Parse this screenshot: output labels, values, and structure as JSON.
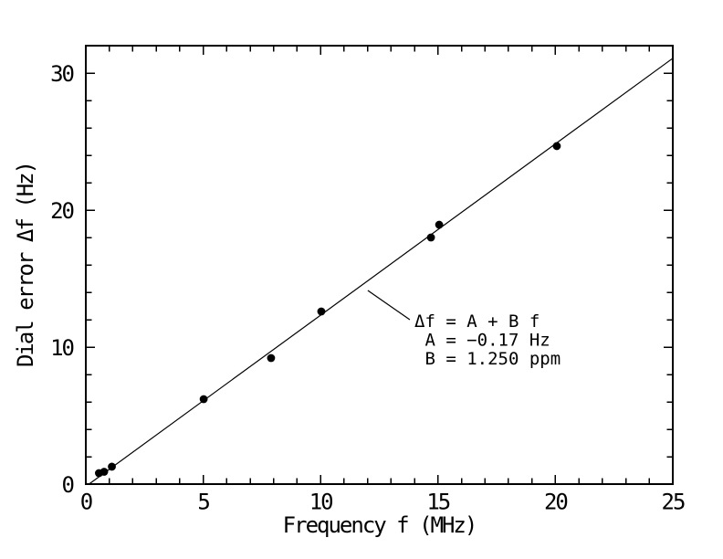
{
  "figure": {
    "background": "#ffffff",
    "ink": "#000000"
  },
  "chart_data": {
    "type": "scatter",
    "title": "",
    "xlabel": "Frequency f (MHz)",
    "ylabel": "Dial error Δf (Hz)",
    "xlim": [
      0,
      25
    ],
    "ylim": [
      0,
      32
    ],
    "x_major_ticks": [
      0,
      5,
      10,
      15,
      20,
      25
    ],
    "x_minor_step": 1,
    "y_major_ticks": [
      0,
      10,
      20,
      30
    ],
    "y_minor_step": 2,
    "grid": false,
    "legend": "none",
    "marker": {
      "shape": "filled-circle",
      "radius_px": 4.4,
      "color": "#000000"
    },
    "points": [
      {
        "f": 0.56,
        "df": 0.8
      },
      {
        "f": 0.78,
        "df": 0.9
      },
      {
        "f": 1.11,
        "df": 1.27
      },
      {
        "f": 5.02,
        "df": 6.2
      },
      {
        "f": 7.89,
        "df": 9.2
      },
      {
        "f": 10.03,
        "df": 12.6
      },
      {
        "f": 14.7,
        "df": 18.0
      },
      {
        "f": 15.05,
        "df": 18.93
      },
      {
        "f": 20.06,
        "df": 24.67
      }
    ],
    "fit_line": {
      "equation": "Δf = A + B f",
      "intercept_hz": -0.17,
      "slope_ppm": 1.25
    },
    "annotation": {
      "lines": [
        "Δf = A + B f",
        " A = −0.17 Hz",
        " B = 1.250 ppm"
      ],
      "leader_from": {
        "f": 12.01,
        "df": 14.13
      },
      "leader_to": {
        "f": 13.8,
        "df": 12.0
      }
    }
  }
}
